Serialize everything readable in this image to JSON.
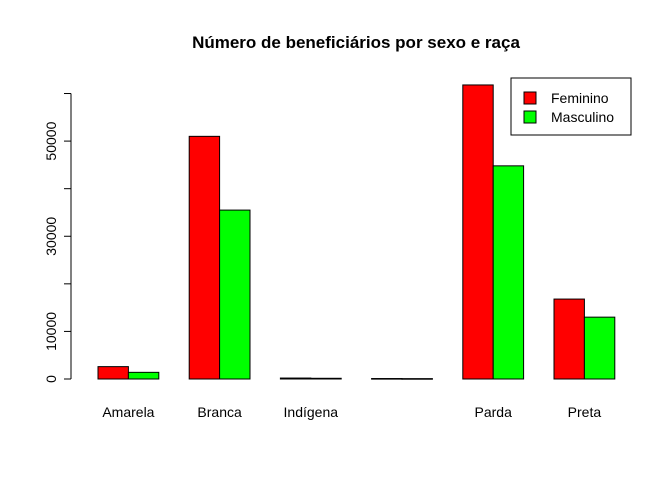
{
  "chart_data": {
    "type": "bar",
    "title": "Número de beneficiários por sexo e raça",
    "xlabel": "",
    "ylabel": "",
    "categories": [
      "Amarela",
      "Branca",
      "Indígena",
      "",
      "Parda",
      "Preta"
    ],
    "series": [
      {
        "name": "Feminino",
        "color": "#ff0000",
        "values": [
          2600,
          51000,
          200,
          100,
          61800,
          16800
        ]
      },
      {
        "name": "Masculino",
        "color": "#00ff00",
        "values": [
          1400,
          35500,
          150,
          80,
          44800,
          13000
        ]
      }
    ],
    "yticks": [
      0,
      10000,
      30000,
      50000
    ],
    "ylim": [
      0,
      62000
    ],
    "legend": "top-right",
    "grid": false
  }
}
